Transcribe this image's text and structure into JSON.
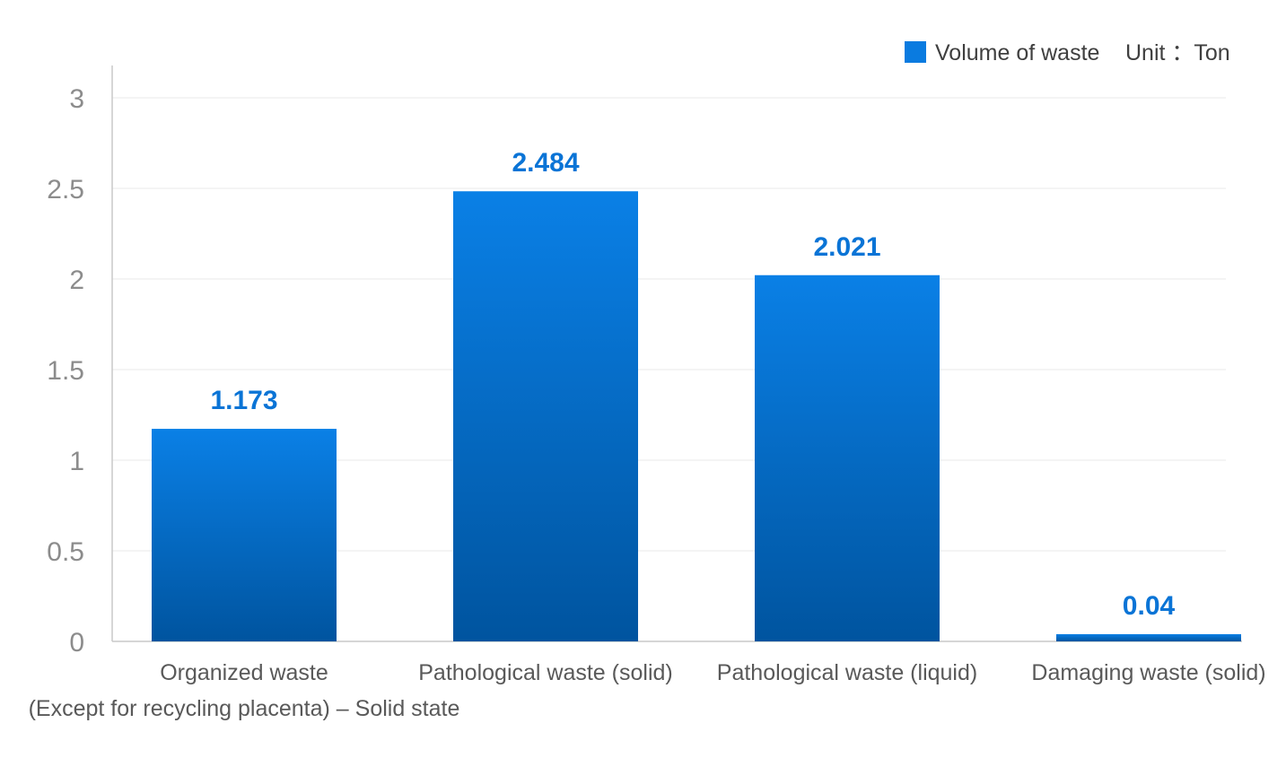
{
  "chart_data": {
    "type": "bar",
    "categories": [
      "Organized waste",
      "Pathological waste (solid)",
      "Pathological waste (liquid)",
      "Damaging waste (solid)"
    ],
    "category_note": "(Except for recycling placenta) – Solid state",
    "series": [
      {
        "name": "Volume of waste",
        "values": [
          1.173,
          2.484,
          2.021,
          0.04
        ]
      }
    ],
    "data_labels": [
      "1.173",
      "2.484",
      "2.021",
      "0.04"
    ],
    "unit_label": "Unit ：Ton",
    "ylim": [
      0,
      3
    ],
    "yticks": [
      0,
      0.5,
      1,
      1.5,
      2,
      2.5,
      3
    ],
    "ytick_labels": [
      "0",
      "0.5",
      "1",
      "1.5",
      "2",
      "2.5",
      "3"
    ],
    "grid": true,
    "legend_position": "top-right",
    "colors": {
      "bar_top": "#0a80e6",
      "bar_bottom": "#00549f",
      "data_label": "#0a74d6",
      "legend_swatch": "#0a7be0",
      "grid": "#e8e8e8",
      "axis": "#c8c8c8"
    }
  }
}
